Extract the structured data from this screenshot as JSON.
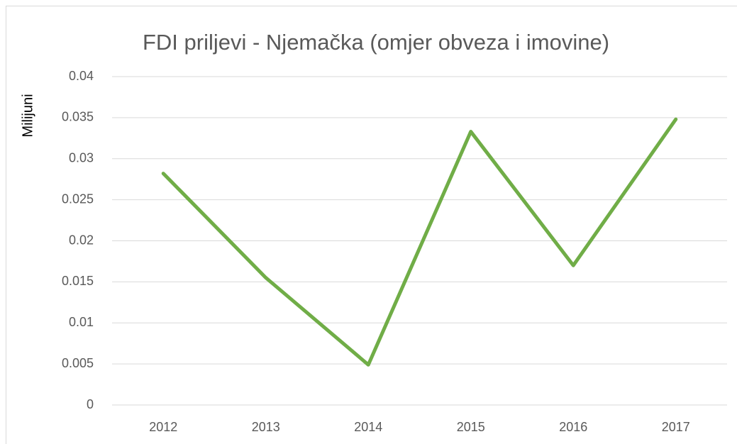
{
  "chart_data": {
    "type": "line",
    "title": "FDI priljevi - Njemačka (omjer obveza i imovine)",
    "y_label": "Milijuni",
    "categories": [
      "2012",
      "2013",
      "2014",
      "2015",
      "2016",
      "2017"
    ],
    "series": [
      {
        "name": "FDI priljevi",
        "color": "#70ad47",
        "values": [
          0.0282,
          0.0155,
          0.0049,
          0.0333,
          0.017,
          0.0348
        ]
      }
    ],
    "ylim": [
      0,
      0.04
    ],
    "yticks": [
      0,
      0.005,
      0.01,
      0.015,
      0.02,
      0.025,
      0.03,
      0.035,
      0.04
    ],
    "grid": true
  }
}
